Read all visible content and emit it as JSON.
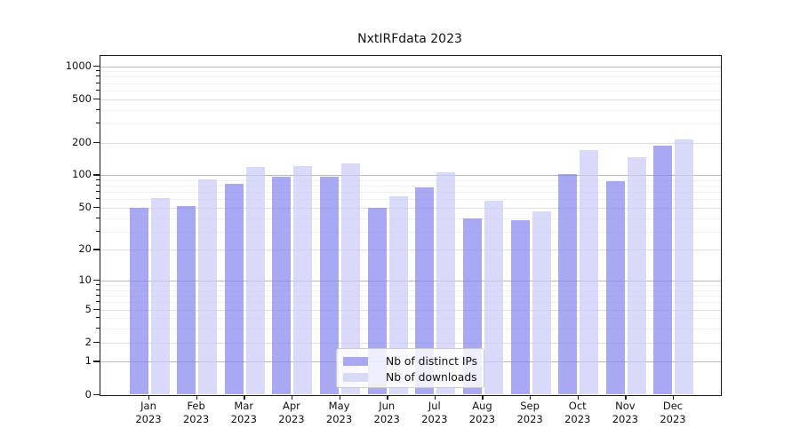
{
  "title": "NxtIRFdata 2023",
  "chart_data": {
    "type": "bar",
    "scale": "log1p",
    "title": "NxtIRFdata 2023",
    "year": "2023",
    "months": [
      "Jan",
      "Feb",
      "Mar",
      "Apr",
      "May",
      "Jun",
      "Jul",
      "Aug",
      "Sep",
      "Oct",
      "Nov",
      "Dec"
    ],
    "series": [
      {
        "name": "Nb of distinct IPs",
        "swatch": "#a8a8f3",
        "fill": "rgba(134,134,238,0.72)",
        "values": [
          50,
          52,
          83,
          97,
          97,
          50,
          78,
          40,
          38,
          103,
          89,
          186
        ]
      },
      {
        "name": "Nb of downloads",
        "swatch": "#d9d9f8",
        "fill": "rgba(203,203,246,0.72)",
        "values": [
          62,
          91,
          119,
          122,
          129,
          64,
          106,
          58,
          46,
          169,
          148,
          215
        ]
      }
    ],
    "yticks": [
      0,
      1,
      2,
      5,
      10,
      20,
      50,
      100,
      200,
      500,
      1000
    ],
    "ylim": [
      0,
      1250
    ],
    "grid": "on",
    "legend_position": "lower center"
  },
  "colors": {
    "grid_major": "#b8b8b8",
    "grid_mid": "#dedede",
    "grid_minor": "#f0f0f0",
    "spine": "#1a1a1a",
    "legend_border": "#cccccc",
    "legend_bg": "rgba(255,255,255,0.8)"
  }
}
